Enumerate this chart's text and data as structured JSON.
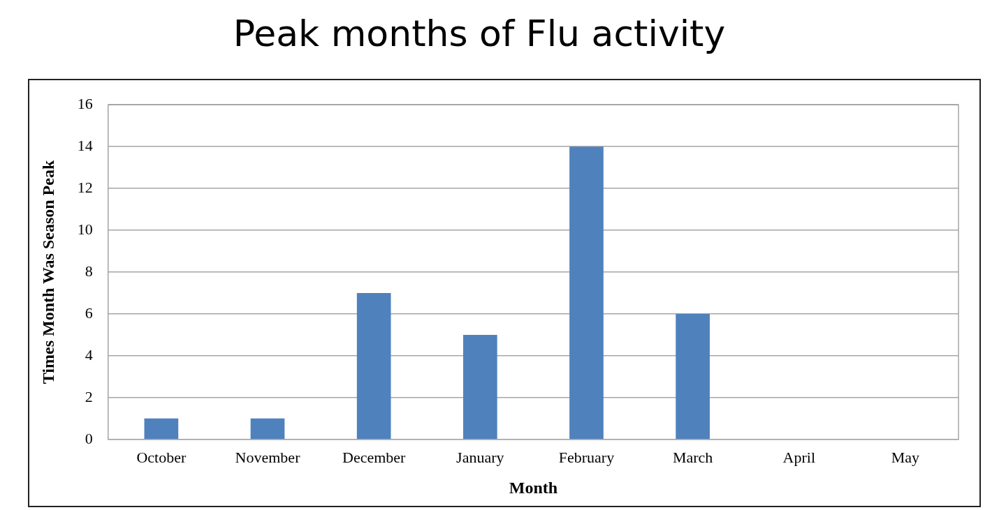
{
  "chart_data": {
    "type": "bar",
    "title": "Peak months of Flu activity",
    "xlabel": "Month",
    "ylabel": "Times Month Was Season Peak",
    "categories": [
      "October",
      "November",
      "December",
      "January",
      "February",
      "March",
      "April",
      "May"
    ],
    "values": [
      1,
      1,
      7,
      5,
      14,
      6,
      0,
      0
    ],
    "color": "#4f81bd",
    "ylim": [
      0,
      16
    ],
    "yticks": [
      0,
      2,
      4,
      6,
      8,
      10,
      12,
      14,
      16
    ],
    "grid": "y",
    "legend": false
  }
}
